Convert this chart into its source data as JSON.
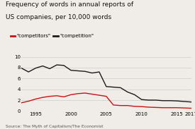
{
  "title_line1": "Frequency of words in annual reports of",
  "title_line2": "US companies, per 10,000 words",
  "source": "Source: The Myth of Capitalism/The Economist",
  "legend_labels": [
    "\"competitors\"",
    "\"competition\""
  ],
  "ylim": [
    0,
    10
  ],
  "yticks": [
    0,
    2,
    4,
    6,
    8,
    10
  ],
  "xlim": [
    1993,
    2017
  ],
  "xticks": [
    1995,
    2000,
    2005,
    2010,
    2015,
    2017
  ],
  "xticklabels": [
    "1995",
    "2000",
    "2005",
    "2010",
    "2015",
    "2017"
  ],
  "competition_x": [
    1993,
    1994,
    1995,
    1996,
    1997,
    1998,
    1999,
    2000,
    2001,
    2002,
    2003,
    2004,
    2005,
    2006,
    2007,
    2008,
    2009,
    2010,
    2011,
    2012,
    2013,
    2014,
    2015,
    2016,
    2017
  ],
  "competition_y": [
    7.9,
    7.2,
    7.9,
    8.3,
    7.8,
    8.5,
    8.4,
    7.5,
    7.4,
    7.3,
    7.0,
    7.2,
    4.5,
    4.4,
    4.3,
    3.5,
    3.0,
    2.1,
    2.0,
    2.0,
    1.9,
    1.9,
    1.85,
    1.75,
    1.65
  ],
  "competitors_x": [
    1993,
    1994,
    1995,
    1996,
    1997,
    1998,
    1999,
    2000,
    2001,
    2002,
    2003,
    2004,
    2005,
    2006,
    2007,
    2008,
    2009,
    2010,
    2011,
    2012,
    2013,
    2014,
    2015,
    2016,
    2017
  ],
  "competitors_y": [
    1.5,
    1.8,
    2.2,
    2.5,
    2.7,
    2.8,
    2.6,
    3.0,
    3.2,
    3.3,
    3.1,
    2.9,
    2.7,
    1.1,
    1.0,
    1.0,
    0.85,
    0.8,
    0.7,
    0.65,
    0.6,
    0.6,
    0.6,
    0.55,
    0.5
  ],
  "bg_color": "#f0ede8",
  "line_color_competition": "#1a1a1a",
  "line_color_competitors": "#cc1111",
  "grid_color": "#cccccc",
  "title_fontsize": 6.5,
  "tick_fontsize": 5.0,
  "source_fontsize": 4.2,
  "legend_fontsize": 5.0
}
